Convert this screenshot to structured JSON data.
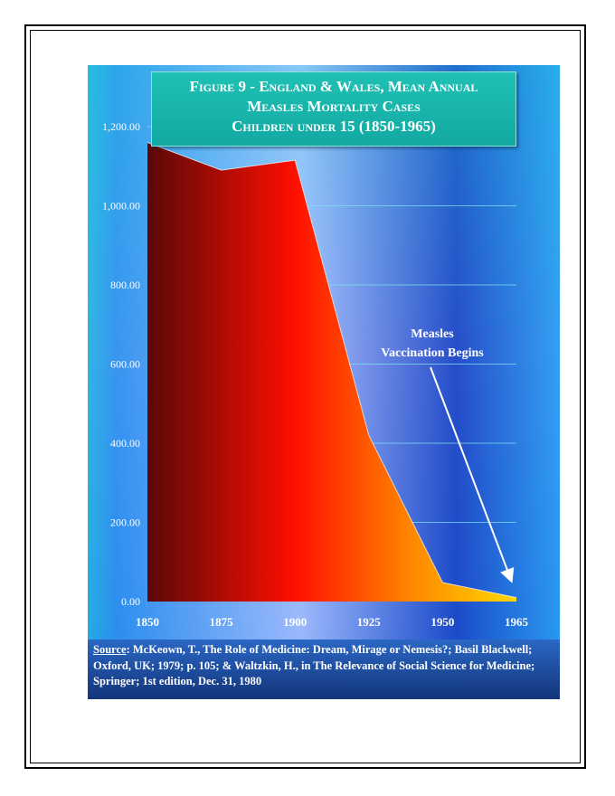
{
  "title_lines": [
    "Figure 9  - England & Wales, Mean Annual",
    "Measles Mortality Cases",
    "Children under 15 (1850-1965)"
  ],
  "source": {
    "label": "Source",
    "text": ":  McKeown, T., The Role of Medicine: Dream, Mirage or Nemesis?; Basil Blackwell; Oxford, UK; 1979; p. 105; & Waltzkin, H., in The Relevance of Social Science for Medicine; Springer; 1st edition, Dec. 31, 1980"
  },
  "annotation": {
    "lines": [
      "Measles",
      "Vaccination Begins"
    ]
  },
  "colors": {
    "area_dark": "#5a0808",
    "area_red": "#ff0f00",
    "area_orange": "#ff8800",
    "area_yellow": "#ffd800",
    "grid": "#7fe0f0",
    "text": "#ffffff"
  },
  "chart_data": {
    "type": "area",
    "x": [
      1850,
      1875,
      1900,
      1925,
      1950,
      1965
    ],
    "values": [
      1160,
      1090,
      1115,
      420,
      48,
      10
    ],
    "ylim": [
      0,
      1200
    ],
    "yticks": [
      0,
      200,
      400,
      600,
      800,
      1000,
      1200
    ],
    "ytick_labels": [
      "0.00",
      "200.00",
      "400.00",
      "600.00",
      "800.00",
      "1,000.00",
      "1,200.00"
    ],
    "xtick_labels": [
      "1850",
      "1875",
      "1900",
      "1925",
      "1950",
      "1965"
    ],
    "grid": true
  }
}
